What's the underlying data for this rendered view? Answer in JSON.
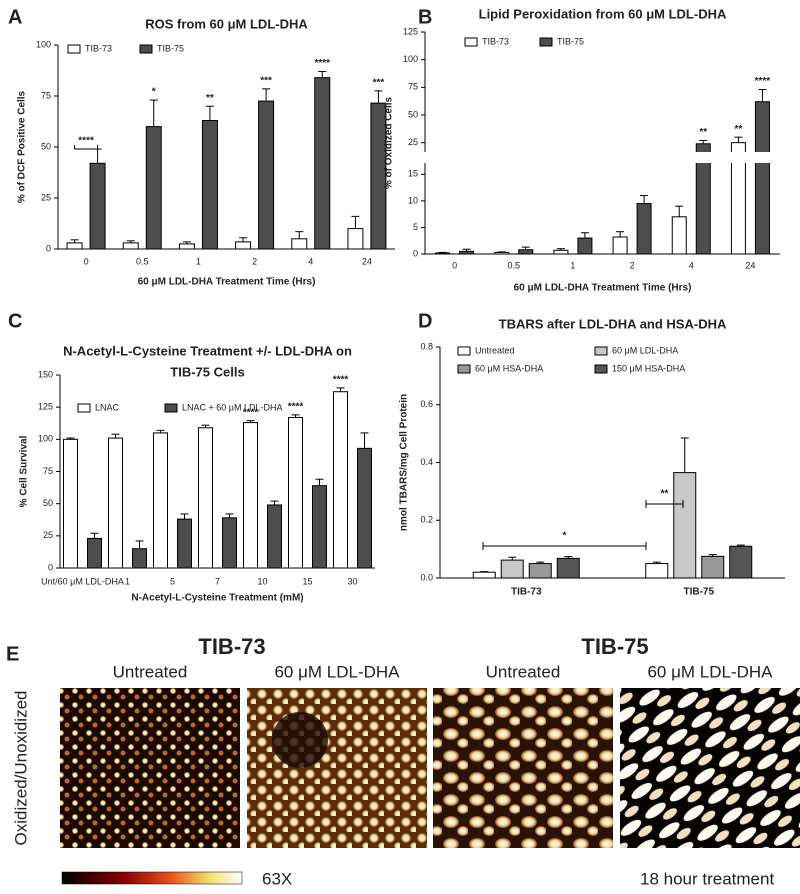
{
  "chart_data": [
    {
      "panel": "A",
      "type": "bar",
      "title": "ROS from 60 μM  LDL-DHA",
      "y_label": "% of DCF Positive Cells",
      "x_label": "60 μM LDL-DHA Treatment Time (Hrs)",
      "categories": [
        "0",
        "0.5",
        "1",
        "2",
        "4",
        "24"
      ],
      "series": [
        {
          "name": "TIB-73",
          "color": "#ffffff",
          "values": [
            3,
            3,
            2.5,
            3.5,
            5,
            10
          ],
          "errors": [
            1.5,
            1,
            1,
            2,
            3.5,
            6
          ]
        },
        {
          "name": "TIB-75",
          "color": "#4d4d4d",
          "values": [
            42,
            60,
            63,
            72.5,
            84,
            71.5
          ],
          "errors": [
            7,
            13,
            7,
            6,
            3,
            6
          ],
          "labels": [
            "****",
            "*",
            "**",
            "***",
            "****",
            "***"
          ]
        }
      ],
      "ylim": [
        0,
        100
      ],
      "yticks": [
        0,
        25,
        50,
        75,
        100
      ]
    },
    {
      "panel": "B",
      "type": "bar",
      "title": "Lipid Peroxidation from 60 μM LDL-DHA",
      "y_label": "% of Oxidized Cells",
      "x_label": "60 μM LDL-DHA Treatment Time (Hrs)",
      "categories": [
        "0",
        "0.5",
        "1",
        "2",
        "4",
        "24"
      ],
      "series": [
        {
          "name": "TIB-73",
          "color": "#ffffff",
          "values": [
            0.2,
            0.3,
            0.7,
            3.2,
            7,
            25
          ],
          "errors": [
            0.1,
            0.1,
            0.3,
            1,
            2,
            5
          ],
          "labels": [
            null,
            null,
            null,
            null,
            null,
            "**"
          ]
        },
        {
          "name": "TIB-75",
          "color": "#4d4d4d",
          "values": [
            0.5,
            0.8,
            3,
            9.5,
            24,
            62
          ],
          "errors": [
            0.4,
            0.5,
            1,
            1.5,
            3,
            11
          ],
          "labels": [
            null,
            null,
            null,
            null,
            "**",
            "****"
          ]
        }
      ],
      "ylim": [
        0,
        125
      ],
      "y_break": [
        16,
        22
      ],
      "yticks": [
        0,
        5,
        10,
        15,
        25,
        50,
        75,
        100,
        125
      ]
    },
    {
      "panel": "C",
      "type": "bar",
      "title": [
        "N-Acetyl-L-Cysteine Treatment +/-  LDL-DHA on",
        "TIB-75  Cells"
      ],
      "y_label": "% Cell Survival",
      "x_label": "N-Acetyl-L-Cysteine Treatment (mM)",
      "categories": [
        "Unt/60 μM LDL-DHA",
        "1",
        "5",
        "7",
        "10",
        "15",
        "30"
      ],
      "series": [
        {
          "name": "LNAC",
          "color": "#ffffff",
          "values": [
            100,
            101,
            105,
            109,
            113,
            117,
            137
          ],
          "errors": [
            1,
            3,
            2,
            2,
            1.5,
            2,
            3
          ],
          "labels": [
            null,
            null,
            null,
            null,
            "****",
            "****",
            "****"
          ]
        },
        {
          "name": "LNAC + 60 μM LDL-DHA",
          "color": "#4d4d4d",
          "values": [
            23,
            15,
            38,
            39,
            49,
            64,
            93
          ],
          "errors": [
            4,
            6,
            4,
            3,
            3,
            5,
            12
          ]
        }
      ],
      "ylim": [
        0,
        150
      ],
      "yticks": [
        0,
        25,
        50,
        75,
        100,
        125,
        150
      ]
    },
    {
      "panel": "D",
      "type": "bar",
      "title": "TBARS after LDL-DHA and HSA-DHA",
      "y_label": "nmol TBARS/mg Cell Protein",
      "categories": [
        "TIB-73",
        "TIB-75"
      ],
      "series": [
        {
          "name": "Untreated",
          "color": "#ffffff",
          "values": [
            0.02,
            0.05
          ],
          "errors": [
            0.002,
            0.005
          ]
        },
        {
          "name": "60 μM LDL-DHA",
          "color": "#c8c8c8",
          "values": [
            0.062,
            0.365
          ],
          "errors": [
            0.01,
            0.12
          ]
        },
        {
          "name": "60 μM HSA-DHA",
          "color": "#999999",
          "values": [
            0.05,
            0.075
          ],
          "errors": [
            0.005,
            0.006
          ]
        },
        {
          "name": "150 μM HSA-DHA",
          "color": "#555555",
          "values": [
            0.068,
            0.11
          ],
          "errors": [
            0.006,
            0.004
          ]
        }
      ],
      "annotations": [
        "*",
        "**"
      ],
      "ylim": [
        0,
        0.8
      ],
      "yticks": [
        {
          "value": 0,
          "label": "0.0"
        },
        0.2,
        0.4,
        0.6,
        0.8
      ]
    }
  ],
  "figure_e": {
    "panel": "E",
    "groups": [
      {
        "title": "TIB-73",
        "images": [
          "Untreated",
          "60 μM LDL-DHA"
        ]
      },
      {
        "title": "TIB-75",
        "images": [
          "Untreated",
          "60 μM LDL-DHA"
        ]
      }
    ],
    "y_label": "Oxidized/Unoxidized",
    "magnification": "63X",
    "note": "18 hour treatment"
  }
}
